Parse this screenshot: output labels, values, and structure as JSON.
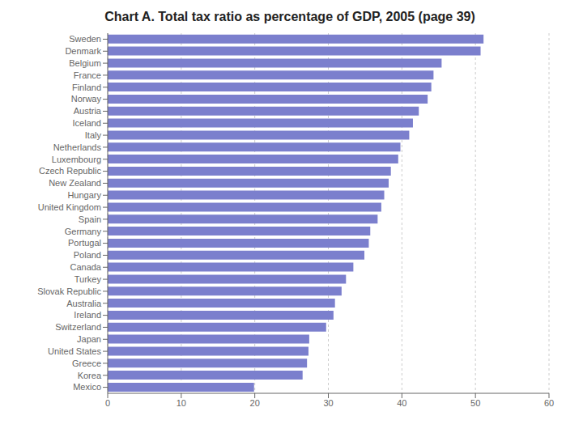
{
  "chart_data": {
    "type": "bar",
    "title": "Chart A. Total tax ratio as percentage of GDP, 2005 (page 39)",
    "orientation": "horizontal",
    "categories": [
      "Sweden",
      "Denmark",
      "Belgium",
      "France",
      "Finland",
      "Norway",
      "Austria",
      "Iceland",
      "Italy",
      "Netherlands",
      "Luxembourg",
      "Czech Republic",
      "New Zealand",
      "Hungary",
      "United Kingdom",
      "Spain",
      "Germany",
      "Portugal",
      "Poland",
      "Canada",
      "Turkey",
      "Slovak Republic",
      "Australia",
      "Ireland",
      "Switzerland",
      "Japan",
      "United States",
      "Greece",
      "Korea",
      "Mexico"
    ],
    "values": [
      51.1,
      50.7,
      45.4,
      44.3,
      44.0,
      43.5,
      42.3,
      41.5,
      41.0,
      39.8,
      39.5,
      38.5,
      38.2,
      37.6,
      37.2,
      36.7,
      35.7,
      35.5,
      34.9,
      33.4,
      32.4,
      31.8,
      30.9,
      30.7,
      29.7,
      27.4,
      27.3,
      27.1,
      26.5,
      19.9
    ],
    "color": "#7b7fcd",
    "xlim": [
      0,
      60
    ],
    "xticks": [
      0,
      10,
      20,
      30,
      40,
      50,
      60
    ],
    "grid": true
  }
}
